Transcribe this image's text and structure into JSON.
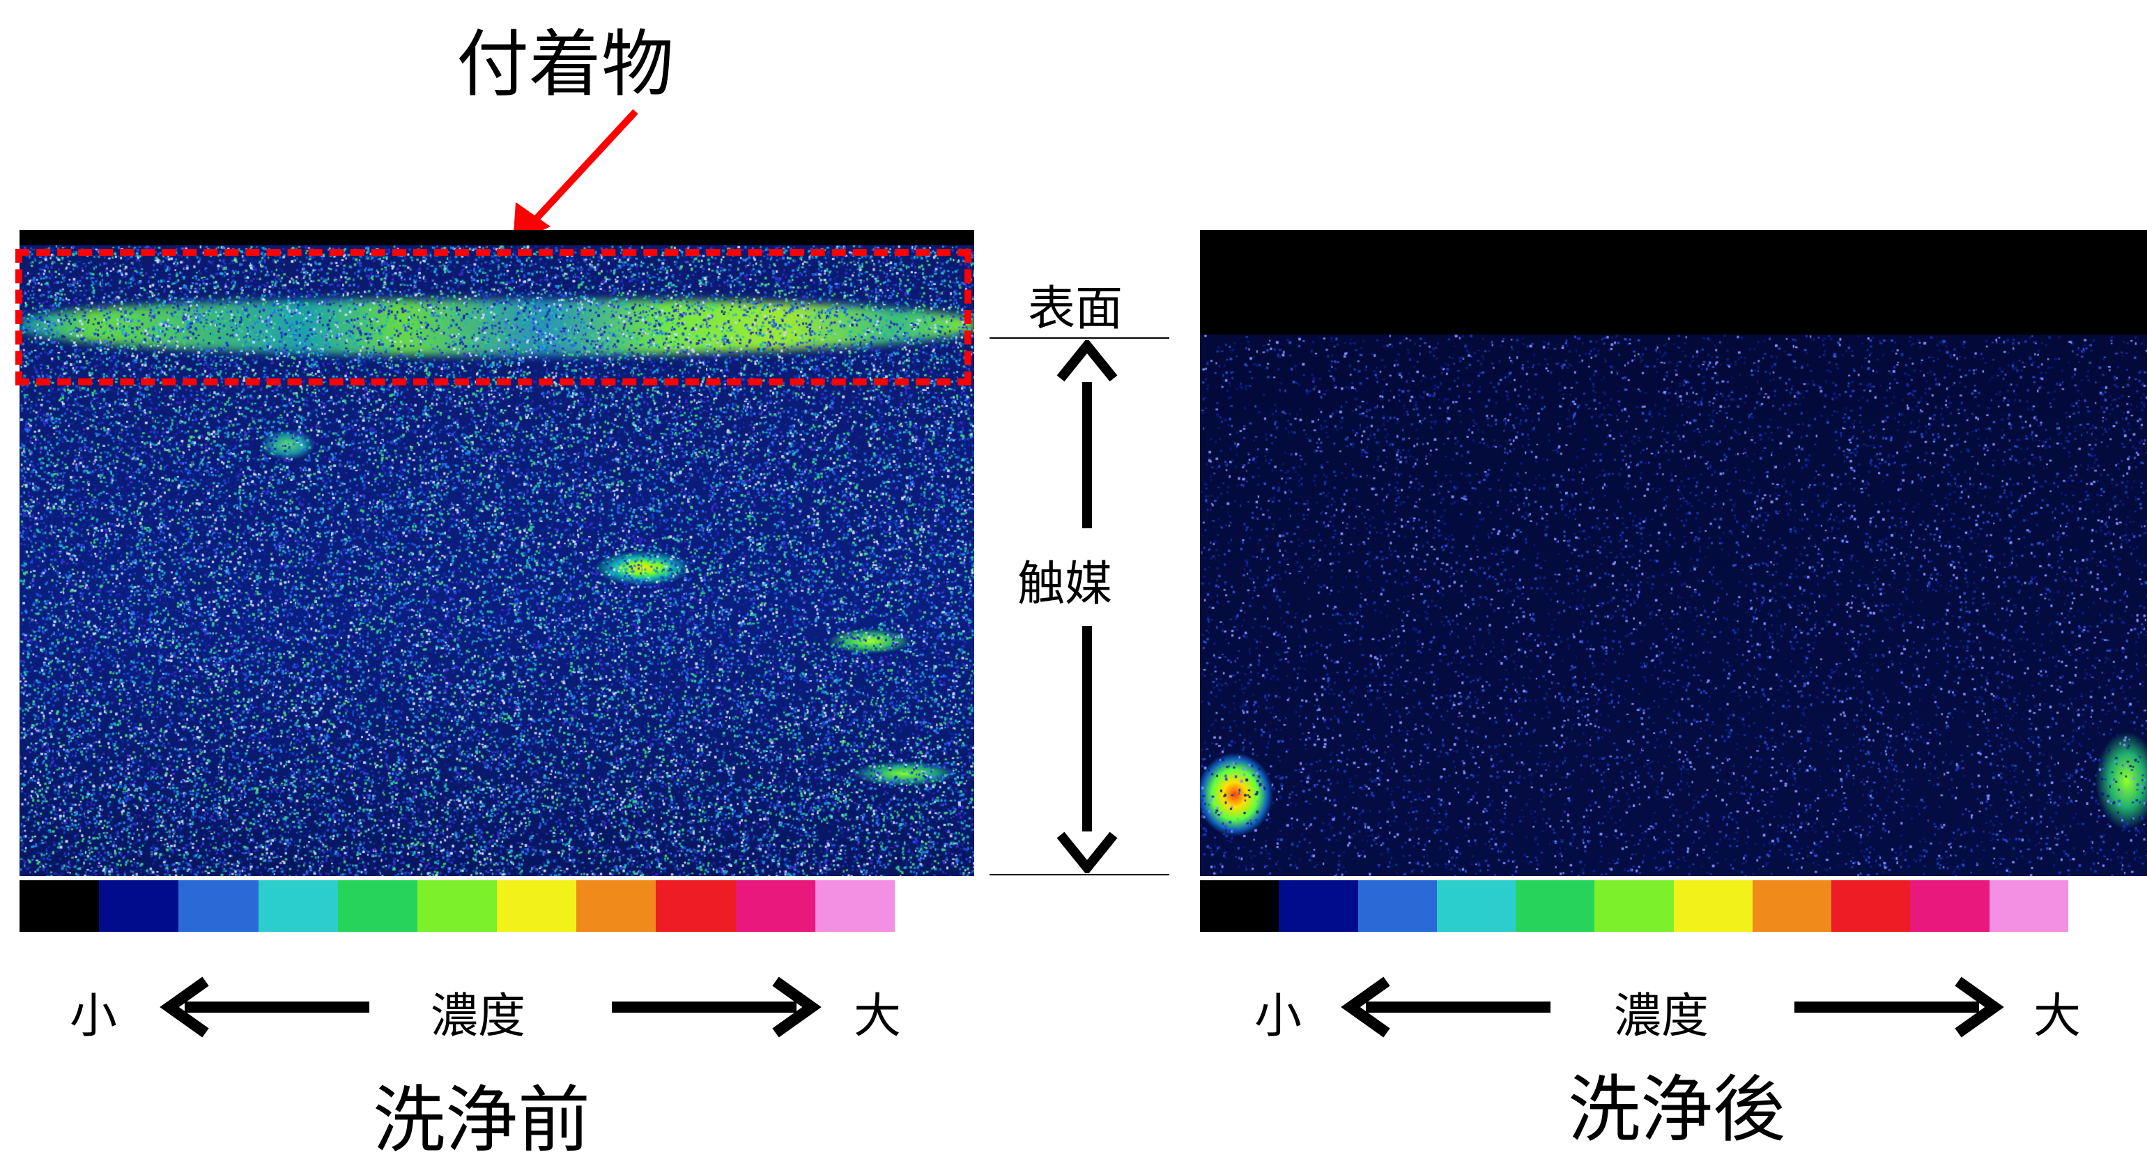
{
  "annotation": {
    "deposit_label": "付着物"
  },
  "scale": {
    "surface_label": "表面",
    "catalyst_label": "触媒"
  },
  "panels": [
    {
      "caption": "洗浄前",
      "legend": {
        "low": "小",
        "mid": "濃度",
        "high": "大"
      }
    },
    {
      "caption": "洗浄後",
      "legend": {
        "low": "小",
        "mid": "濃度",
        "high": "大"
      }
    }
  ],
  "colorbar_colors": [
    "#000000",
    "#000c8c",
    "#2a6ad6",
    "#2ccdcd",
    "#26d45a",
    "#7cf02a",
    "#f2f21a",
    "#f08a1a",
    "#ee1c24",
    "#e8187c",
    "#f490e4",
    "#ffffff"
  ],
  "colors": {
    "annotation": "#ff0000"
  }
}
